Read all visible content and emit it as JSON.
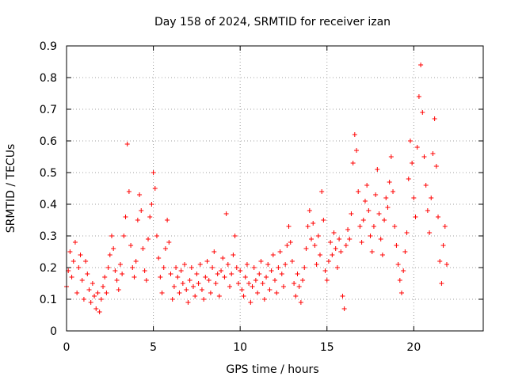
{
  "chart_data": {
    "type": "scatter",
    "title": "Day 158 of 2024, SRMTID for receiver izan",
    "xlabel": "GPS time / hours",
    "ylabel": "SRMTID / TECUs",
    "xlim": [
      0,
      24
    ],
    "ylim": [
      0,
      0.9
    ],
    "x_ticks": [
      0,
      5,
      10,
      15,
      20
    ],
    "x_tick_labels": [
      "0",
      "5",
      "10",
      "15",
      "20"
    ],
    "y_ticks": [
      0,
      0.1,
      0.2,
      0.3,
      0.4,
      0.5,
      0.6,
      0.7,
      0.8,
      0.9
    ],
    "y_tick_labels": [
      "0",
      "0.1",
      "0.2",
      "0.3",
      "0.4",
      "0.5",
      "0.6",
      "0.7",
      "0.8",
      "0.9"
    ],
    "grid": true,
    "marker": "+",
    "color": "#ff0000",
    "series": [
      {
        "name": "SRMTID",
        "points": [
          [
            0.0,
            0.14
          ],
          [
            0.1,
            0.19
          ],
          [
            0.2,
            0.25
          ],
          [
            0.3,
            0.17
          ],
          [
            0.4,
            0.22
          ],
          [
            0.5,
            0.28
          ],
          [
            0.6,
            0.12
          ],
          [
            0.7,
            0.2
          ],
          [
            0.8,
            0.24
          ],
          [
            0.9,
            0.16
          ],
          [
            1.0,
            0.1
          ],
          [
            1.1,
            0.22
          ],
          [
            1.2,
            0.18
          ],
          [
            1.3,
            0.13
          ],
          [
            1.4,
            0.09
          ],
          [
            1.5,
            0.15
          ],
          [
            1.6,
            0.11
          ],
          [
            1.7,
            0.07
          ],
          [
            1.8,
            0.12
          ],
          [
            1.9,
            0.06
          ],
          [
            2.0,
            0.1
          ],
          [
            2.1,
            0.14
          ],
          [
            2.2,
            0.17
          ],
          [
            2.3,
            0.12
          ],
          [
            2.4,
            0.2
          ],
          [
            2.5,
            0.24
          ],
          [
            2.6,
            0.3
          ],
          [
            2.7,
            0.26
          ],
          [
            2.8,
            0.19
          ],
          [
            2.9,
            0.16
          ],
          [
            3.0,
            0.13
          ],
          [
            3.1,
            0.21
          ],
          [
            3.2,
            0.18
          ],
          [
            3.3,
            0.3
          ],
          [
            3.4,
            0.36
          ],
          [
            3.5,
            0.59
          ],
          [
            3.6,
            0.44
          ],
          [
            3.7,
            0.27
          ],
          [
            3.8,
            0.2
          ],
          [
            3.9,
            0.17
          ],
          [
            4.0,
            0.22
          ],
          [
            4.1,
            0.35
          ],
          [
            4.2,
            0.43
          ],
          [
            4.3,
            0.38
          ],
          [
            4.4,
            0.26
          ],
          [
            4.5,
            0.19
          ],
          [
            4.6,
            0.16
          ],
          [
            4.7,
            0.29
          ],
          [
            4.8,
            0.36
          ],
          [
            4.9,
            0.4
          ],
          [
            5.0,
            0.5
          ],
          [
            5.1,
            0.45
          ],
          [
            5.2,
            0.3
          ],
          [
            5.3,
            0.23
          ],
          [
            5.4,
            0.17
          ],
          [
            5.5,
            0.12
          ],
          [
            5.6,
            0.2
          ],
          [
            5.7,
            0.26
          ],
          [
            5.8,
            0.35
          ],
          [
            5.9,
            0.28
          ],
          [
            6.0,
            0.18
          ],
          [
            6.1,
            0.1
          ],
          [
            6.2,
            0.14
          ],
          [
            6.3,
            0.2
          ],
          [
            6.4,
            0.17
          ],
          [
            6.5,
            0.12
          ],
          [
            6.6,
            0.19
          ],
          [
            6.7,
            0.15
          ],
          [
            6.8,
            0.21
          ],
          [
            6.9,
            0.13
          ],
          [
            7.0,
            0.09
          ],
          [
            7.1,
            0.16
          ],
          [
            7.2,
            0.2
          ],
          [
            7.3,
            0.14
          ],
          [
            7.4,
            0.11
          ],
          [
            7.5,
            0.18
          ],
          [
            7.6,
            0.15
          ],
          [
            7.7,
            0.21
          ],
          [
            7.8,
            0.13
          ],
          [
            7.9,
            0.1
          ],
          [
            8.0,
            0.17
          ],
          [
            8.1,
            0.22
          ],
          [
            8.2,
            0.16
          ],
          [
            8.3,
            0.12
          ],
          [
            8.4,
            0.2
          ],
          [
            8.5,
            0.25
          ],
          [
            8.6,
            0.15
          ],
          [
            8.7,
            0.18
          ],
          [
            8.8,
            0.11
          ],
          [
            8.9,
            0.19
          ],
          [
            9.0,
            0.23
          ],
          [
            9.1,
            0.17
          ],
          [
            9.2,
            0.37
          ],
          [
            9.3,
            0.21
          ],
          [
            9.4,
            0.14
          ],
          [
            9.5,
            0.18
          ],
          [
            9.6,
            0.24
          ],
          [
            9.7,
            0.3
          ],
          [
            9.8,
            0.2
          ],
          [
            9.9,
            0.15
          ],
          [
            10.0,
            0.19
          ],
          [
            10.1,
            0.13
          ],
          [
            10.2,
            0.11
          ],
          [
            10.3,
            0.17
          ],
          [
            10.4,
            0.21
          ],
          [
            10.5,
            0.15
          ],
          [
            10.6,
            0.09
          ],
          [
            10.7,
            0.14
          ],
          [
            10.8,
            0.2
          ],
          [
            10.9,
            0.16
          ],
          [
            11.0,
            0.12
          ],
          [
            11.1,
            0.18
          ],
          [
            11.2,
            0.22
          ],
          [
            11.3,
            0.15
          ],
          [
            11.4,
            0.1
          ],
          [
            11.5,
            0.17
          ],
          [
            11.6,
            0.21
          ],
          [
            11.7,
            0.13
          ],
          [
            11.8,
            0.19
          ],
          [
            11.9,
            0.24
          ],
          [
            12.0,
            0.16
          ],
          [
            12.1,
            0.12
          ],
          [
            12.2,
            0.2
          ],
          [
            12.3,
            0.25
          ],
          [
            12.4,
            0.18
          ],
          [
            12.5,
            0.14
          ],
          [
            12.6,
            0.21
          ],
          [
            12.7,
            0.27
          ],
          [
            12.8,
            0.33
          ],
          [
            12.9,
            0.28
          ],
          [
            13.0,
            0.22
          ],
          [
            13.1,
            0.15
          ],
          [
            13.2,
            0.11
          ],
          [
            13.3,
            0.18
          ],
          [
            13.4,
            0.14
          ],
          [
            13.5,
            0.09
          ],
          [
            13.6,
            0.16
          ],
          [
            13.7,
            0.2
          ],
          [
            13.8,
            0.26
          ],
          [
            13.9,
            0.33
          ],
          [
            14.0,
            0.38
          ],
          [
            14.1,
            0.29
          ],
          [
            14.2,
            0.34
          ],
          [
            14.3,
            0.27
          ],
          [
            14.4,
            0.21
          ],
          [
            14.5,
            0.3
          ],
          [
            14.6,
            0.24
          ],
          [
            14.7,
            0.44
          ],
          [
            14.8,
            0.35
          ],
          [
            14.9,
            0.19
          ],
          [
            15.0,
            0.16
          ],
          [
            15.1,
            0.22
          ],
          [
            15.2,
            0.28
          ],
          [
            15.3,
            0.24
          ],
          [
            15.4,
            0.31
          ],
          [
            15.5,
            0.26
          ],
          [
            15.6,
            0.2
          ],
          [
            15.7,
            0.29
          ],
          [
            15.8,
            0.25
          ],
          [
            15.9,
            0.11
          ],
          [
            16.0,
            0.07
          ],
          [
            16.1,
            0.27
          ],
          [
            16.2,
            0.32
          ],
          [
            16.3,
            0.29
          ],
          [
            16.4,
            0.37
          ],
          [
            16.5,
            0.53
          ],
          [
            16.6,
            0.62
          ],
          [
            16.7,
            0.57
          ],
          [
            16.8,
            0.44
          ],
          [
            16.9,
            0.33
          ],
          [
            17.0,
            0.28
          ],
          [
            17.1,
            0.35
          ],
          [
            17.2,
            0.41
          ],
          [
            17.3,
            0.46
          ],
          [
            17.4,
            0.38
          ],
          [
            17.5,
            0.3
          ],
          [
            17.6,
            0.25
          ],
          [
            17.7,
            0.33
          ],
          [
            17.8,
            0.43
          ],
          [
            17.9,
            0.51
          ],
          [
            18.0,
            0.37
          ],
          [
            18.1,
            0.29
          ],
          [
            18.2,
            0.24
          ],
          [
            18.3,
            0.35
          ],
          [
            18.4,
            0.42
          ],
          [
            18.5,
            0.39
          ],
          [
            18.6,
            0.47
          ],
          [
            18.7,
            0.55
          ],
          [
            18.8,
            0.44
          ],
          [
            18.9,
            0.33
          ],
          [
            19.0,
            0.27
          ],
          [
            19.1,
            0.21
          ],
          [
            19.2,
            0.16
          ],
          [
            19.3,
            0.12
          ],
          [
            19.4,
            0.19
          ],
          [
            19.5,
            0.25
          ],
          [
            19.6,
            0.31
          ],
          [
            19.7,
            0.48
          ],
          [
            19.8,
            0.6
          ],
          [
            19.9,
            0.53
          ],
          [
            20.0,
            0.42
          ],
          [
            20.1,
            0.36
          ],
          [
            20.2,
            0.58
          ],
          [
            20.3,
            0.74
          ],
          [
            20.4,
            0.84
          ],
          [
            20.5,
            0.69
          ],
          [
            20.6,
            0.55
          ],
          [
            20.7,
            0.46
          ],
          [
            20.8,
            0.38
          ],
          [
            20.9,
            0.31
          ],
          [
            21.0,
            0.42
          ],
          [
            21.1,
            0.56
          ],
          [
            21.2,
            0.67
          ],
          [
            21.3,
            0.52
          ],
          [
            21.4,
            0.36
          ],
          [
            21.5,
            0.22
          ],
          [
            21.6,
            0.15
          ],
          [
            21.7,
            0.27
          ],
          [
            21.8,
            0.33
          ],
          [
            21.9,
            0.21
          ]
        ]
      }
    ]
  }
}
